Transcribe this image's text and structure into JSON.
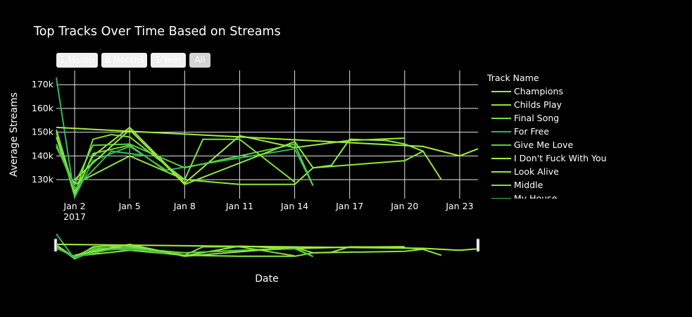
{
  "chart_data": {
    "type": "line",
    "title": "Top Tracks Over Time Based on Streams",
    "xlabel": "Date",
    "ylabel": "Average Streams",
    "x_ticks": [
      "Jan 2",
      "Jan 5",
      "Jan 8",
      "Jan 11",
      "Jan 14",
      "Jan 17",
      "Jan 20",
      "Jan 23"
    ],
    "x_tick_values": [
      "2017-01-02",
      "2017-01-05",
      "2017-01-08",
      "2017-01-11",
      "2017-01-14",
      "2017-01-17",
      "2017-01-20",
      "2017-01-23"
    ],
    "x_year_label": "2017",
    "y_ticks": [
      "130k",
      "140k",
      "150k",
      "160k",
      "170k"
    ],
    "y_tick_values": [
      130000,
      140000,
      150000,
      160000,
      170000
    ],
    "xlim": [
      "2017-01-01",
      "2017-01-24"
    ],
    "ylim": [
      122000,
      176000
    ],
    "grid": true,
    "legend_title": "Track Name",
    "legend_placement": "right",
    "range_buttons": [
      "1 Month",
      "6 Months",
      "1 Year",
      "All"
    ],
    "active_range_button": "All",
    "rangeslider": true,
    "series": [
      {
        "name": "Champions",
        "color": "#9aea3c",
        "x": [
          "2017-01-01",
          "2017-01-02",
          "2017-01-03",
          "2017-01-05",
          "2017-01-08",
          "2017-01-11",
          "2017-01-14",
          "2017-01-17",
          "2017-01-20"
        ],
        "y": [
          151000,
          125000,
          140000,
          152000,
          128500,
          148500,
          143500,
          146500,
          147500
        ]
      },
      {
        "name": "Childs Play",
        "color": "#8ee63a",
        "x": [
          "2017-01-01",
          "2017-01-02",
          "2017-01-05",
          "2017-01-08",
          "2017-01-11",
          "2017-01-14",
          "2017-01-15",
          "2017-01-20",
          "2017-01-21"
        ],
        "y": [
          144000,
          128000,
          140000,
          130000,
          128000,
          128000,
          135000,
          138000,
          142000
        ]
      },
      {
        "name": "Final Song",
        "color": "#6fdd3a",
        "x": [
          "2017-01-01",
          "2017-01-02",
          "2017-01-03",
          "2017-01-05",
          "2017-01-07"
        ],
        "y": [
          150000,
          123000,
          141000,
          144500,
          133500
        ]
      },
      {
        "name": "For Free",
        "color": "#2eb85a",
        "x": [
          "2017-01-01",
          "2017-01-02",
          "2017-01-03",
          "2017-01-05",
          "2017-01-07",
          "2017-01-14",
          "2017-01-15"
        ],
        "y": [
          173000,
          122500,
          138000,
          144000,
          134000,
          143000,
          127500
        ]
      },
      {
        "name": "Give Me Love",
        "color": "#5ad040",
        "x": [
          "2017-01-02",
          "2017-01-03",
          "2017-01-05",
          "2017-01-08",
          "2017-01-14",
          "2017-01-15"
        ],
        "y": [
          128000,
          144500,
          145000,
          135000,
          145000,
          127500
        ]
      },
      {
        "name": "I Don't Fuck With You",
        "color": "#a2f03c",
        "x": [
          "2017-01-01",
          "2017-01-21",
          "2017-01-23",
          "2017-01-24"
        ],
        "y": [
          152000,
          144000,
          140000,
          143000
        ]
      },
      {
        "name": "Look Alive",
        "color": "#92e83c",
        "x": [
          "2017-01-02",
          "2017-01-05",
          "2017-01-08",
          "2017-01-14",
          "2017-01-15",
          "2017-01-16",
          "2017-01-17",
          "2017-01-19",
          "2017-01-20",
          "2017-01-21",
          "2017-01-22"
        ],
        "y": [
          130000,
          151000,
          128000,
          146000,
          135000,
          136000,
          147000,
          146500,
          145000,
          142000,
          130000
        ]
      },
      {
        "name": "Middle",
        "color": "#7fe03a",
        "x": [
          "2017-01-01",
          "2017-01-02",
          "2017-01-03",
          "2017-01-04",
          "2017-01-05",
          "2017-01-08",
          "2017-01-09",
          "2017-01-11",
          "2017-01-14"
        ],
        "y": [
          148000,
          124000,
          147000,
          149000,
          148000,
          130000,
          147000,
          147000,
          129000
        ]
      },
      {
        "name": "My House",
        "color": "#3cba52",
        "x": [
          "2017-01-01",
          "2017-01-02",
          "2017-01-04",
          "2017-01-06"
        ],
        "y": [
          145000,
          126000,
          142000,
          140000
        ]
      }
    ]
  }
}
